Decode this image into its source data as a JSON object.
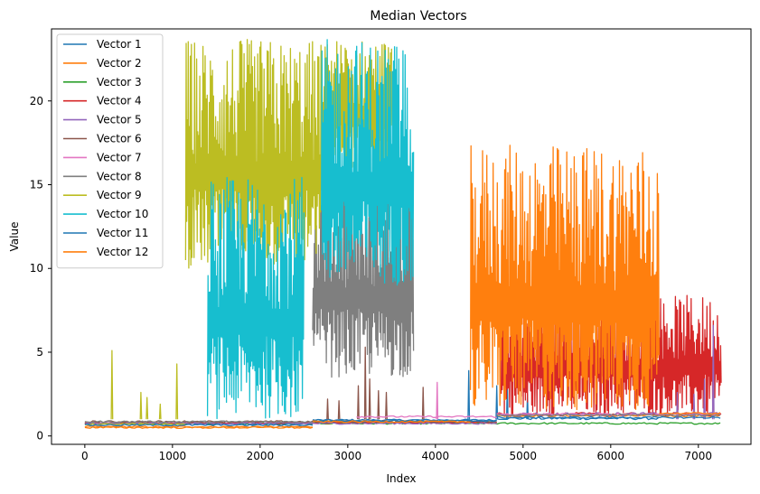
{
  "chart_data": {
    "type": "line",
    "title": "Median Vectors",
    "xlabel": "Index",
    "ylabel": "Value",
    "xlim": [
      -380,
      7600
    ],
    "ylim": [
      -0.5,
      24.3
    ],
    "x_ticks": [
      0,
      1000,
      2000,
      3000,
      4000,
      5000,
      6000,
      7000
    ],
    "y_ticks": [
      0,
      5,
      10,
      15,
      20
    ],
    "grid": false,
    "legend_position": "upper-left",
    "series": [
      {
        "name": "Vector 1",
        "color": "#1f77b4",
        "segments": [
          {
            "x0": 0,
            "x1": 2600,
            "base": 0.72,
            "spread": 0.05
          },
          {
            "x0": 2600,
            "x1": 4700,
            "base": 0.95,
            "spread": 0.05
          },
          {
            "x0": 4700,
            "x1": 6550,
            "base": 1.05,
            "spread": 0.08
          }
        ],
        "spikes": [
          [
            4380,
            3.9
          ],
          [
            4700,
            3.0
          ],
          [
            4820,
            3.4
          ],
          [
            5050,
            2.5
          ]
        ]
      },
      {
        "name": "Vector 2",
        "color": "#ff7f0e",
        "segments": [
          {
            "x0": 0,
            "x1": 2600,
            "base": 0.55,
            "spread": 0.05
          },
          {
            "x0": 2600,
            "x1": 4700,
            "base": 0.85,
            "spread": 0.05
          },
          {
            "x0": 4700,
            "x1": 7250,
            "base": 1.2,
            "spread": 0.06
          }
        ],
        "spikes": []
      },
      {
        "name": "Vector 3",
        "color": "#2ca02c",
        "segments": [
          {
            "x0": 0,
            "x1": 7250,
            "base": 0.75,
            "spread": 0.05
          }
        ],
        "spikes": []
      },
      {
        "name": "Vector 4",
        "color": "#d62728",
        "segments": [
          {
            "x0": 0,
            "x1": 4700,
            "base": 0.8,
            "spread": 0.05
          },
          {
            "x0": 4700,
            "x1": 7260,
            "base": 1.3,
            "spread": 0.1
          }
        ],
        "bursts": [
          {
            "x0": 4750,
            "x1": 7260,
            "low": 1.2,
            "high": 8.4
          }
        ]
      },
      {
        "name": "Vector 5",
        "color": "#9467bd",
        "segments": [
          {
            "x0": 0,
            "x1": 4700,
            "base": 0.75,
            "spread": 0.05
          },
          {
            "x0": 4700,
            "x1": 7240,
            "base": 1.3,
            "spread": 0.1
          }
        ],
        "spikes": [
          [
            7170,
            6.6
          ],
          [
            6950,
            2.5
          ],
          [
            6760,
            2.6
          ],
          [
            7070,
            3.4
          ]
        ]
      },
      {
        "name": "Vector 6",
        "color": "#8c564b",
        "segments": [
          {
            "x0": 0,
            "x1": 4700,
            "base": 0.85,
            "spread": 0.06
          }
        ],
        "spikes": [
          [
            3200,
            5.3
          ],
          [
            3120,
            3.0
          ],
          [
            3250,
            3.4
          ],
          [
            3350,
            2.7
          ],
          [
            3440,
            2.6
          ],
          [
            3860,
            2.9
          ],
          [
            2770,
            2.2
          ],
          [
            2900,
            2.1
          ]
        ]
      },
      {
        "name": "Vector 7",
        "color": "#e377c2",
        "segments": [
          {
            "x0": 3100,
            "x1": 4700,
            "base": 1.15,
            "spread": 0.05
          },
          {
            "x0": 4700,
            "x1": 7250,
            "base": 1.3,
            "spread": 0.05
          }
        ],
        "spikes": [
          [
            4020,
            3.2
          ]
        ]
      },
      {
        "name": "Vector 8",
        "color": "#7f7f7f",
        "segments": [
          {
            "x0": 0,
            "x1": 2600,
            "base": 0.85,
            "spread": 0.05
          },
          {
            "x0": 4700,
            "x1": 7250,
            "base": 1.25,
            "spread": 0.05
          }
        ],
        "bursts": [
          {
            "x0": 2600,
            "x1": 3750,
            "low": 3.5,
            "high": 15.3
          }
        ]
      },
      {
        "name": "Vector 9",
        "color": "#bcbd22",
        "segments": [
          {
            "x0": 0,
            "x1": 1150,
            "base": 0.7,
            "spread": 0.05
          }
        ],
        "spikes": [
          [
            310,
            5.1
          ],
          [
            640,
            2.6
          ],
          [
            710,
            2.3
          ],
          [
            1050,
            4.3
          ],
          [
            860,
            1.9
          ]
        ],
        "bursts": [
          {
            "x0": 1150,
            "x1": 2700,
            "low": 10.0,
            "high": 23.7
          },
          {
            "x0": 2700,
            "x1": 3500,
            "low": 16.0,
            "high": 23.7
          }
        ]
      },
      {
        "name": "Vector 10",
        "color": "#17becf",
        "segments": [],
        "bursts": [
          {
            "x0": 1400,
            "x1": 2500,
            "low": 1.0,
            "high": 15.5
          },
          {
            "x0": 2700,
            "x1": 3750,
            "low": 9.0,
            "high": 23.7
          }
        ]
      },
      {
        "name": "Vector 11",
        "color": "#1f77b4",
        "segments": [
          {
            "x0": 0,
            "x1": 2600,
            "base": 0.65,
            "spread": 0.05
          },
          {
            "x0": 2600,
            "x1": 4700,
            "base": 0.9,
            "spread": 0.05
          },
          {
            "x0": 4700,
            "x1": 7250,
            "base": 1.1,
            "spread": 0.05
          }
        ],
        "spikes": []
      },
      {
        "name": "Vector 12",
        "color": "#ff7f0e",
        "segments": [
          {
            "x0": 0,
            "x1": 2600,
            "base": 0.5,
            "spread": 0.05
          },
          {
            "x0": 2600,
            "x1": 4400,
            "base": 0.85,
            "spread": 0.05
          },
          {
            "x0": 6550,
            "x1": 7250,
            "base": 1.35,
            "spread": 0.05
          }
        ],
        "bursts": [
          {
            "x0": 4400,
            "x1": 6550,
            "low": 1.5,
            "high": 17.4
          }
        ]
      }
    ]
  }
}
